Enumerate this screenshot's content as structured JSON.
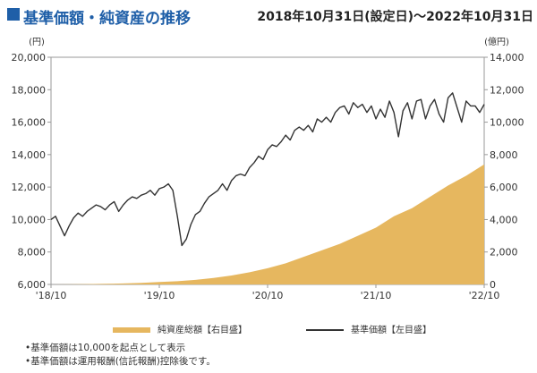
{
  "header": {
    "title": "基準価額・純資産の推移",
    "period": "2018年10月31日(設定日)～2022年10月31日"
  },
  "legend": {
    "area_label": "純資産総額【右目盛】",
    "line_label": "基準価額【左目盛】"
  },
  "notes": [
    "•基準価額は10,000を起点として表示",
    "•基準価額は運用報酬(信託報酬)控除後です。"
  ],
  "colors": {
    "title": "#1f5fa8",
    "area": "#e6b75f",
    "line": "#333333",
    "axis": "#999999"
  },
  "chart_data": {
    "type": "line",
    "title": "基準価額・純資産の推移",
    "left_unit": "(円)",
    "right_unit": "(億円)",
    "ylim_left": [
      6000,
      20000
    ],
    "ylim_right": [
      0,
      14000
    ],
    "yticks_left": [
      "6,000",
      "8,000",
      "10,000",
      "12,000",
      "14,000",
      "16,000",
      "18,000",
      "20,000"
    ],
    "yticks_right": [
      "0",
      "2,000",
      "4,000",
      "6,000",
      "8,000",
      "10,000",
      "12,000",
      "14,000"
    ],
    "xticks": [
      "'18/10",
      "'19/10",
      "'20/10",
      "'21/10",
      "'22/10"
    ],
    "grid": false,
    "series": [
      {
        "name": "純資産総額【右目盛】",
        "type": "area",
        "axis": "right",
        "x": [
          0,
          2,
          4,
          6,
          8,
          10,
          12,
          14,
          16,
          18,
          20,
          22,
          24,
          26,
          28,
          30,
          32,
          34,
          36,
          38,
          40,
          42,
          44,
          46,
          48
        ],
        "y": [
          0,
          10,
          20,
          40,
          60,
          100,
          150,
          200,
          280,
          400,
          550,
          750,
          1000,
          1300,
          1700,
          2100,
          2500,
          3000,
          3500,
          4200,
          4700,
          5400,
          6100,
          6700,
          7400
        ]
      },
      {
        "name": "基準価額【左目盛】",
        "type": "line",
        "axis": "left",
        "x": [
          0,
          0.5,
          1,
          1.5,
          2,
          2.5,
          3,
          3.5,
          4,
          4.5,
          5,
          5.5,
          6,
          6.5,
          7,
          7.5,
          8,
          8.5,
          9,
          9.5,
          10,
          10.5,
          11,
          11.5,
          12,
          12.5,
          13,
          13.5,
          14,
          14.5,
          15,
          15.5,
          16,
          16.5,
          17,
          17.5,
          18,
          18.5,
          19,
          19.5,
          20,
          20.5,
          21,
          21.5,
          22,
          22.5,
          23,
          23.5,
          24,
          24.5,
          25,
          25.5,
          26,
          26.5,
          27,
          27.5,
          28,
          28.5,
          29,
          29.5,
          30,
          30.5,
          31,
          31.5,
          32,
          32.5,
          33,
          33.5,
          34,
          34.5,
          35,
          35.5,
          36,
          36.5,
          37,
          37.5,
          38,
          38.5,
          39,
          39.5,
          40,
          40.5,
          41,
          41.5,
          42,
          42.5,
          43,
          43.5,
          44,
          44.5,
          45,
          45.5,
          46,
          46.5,
          47,
          47.5,
          48
        ],
        "y": [
          10000,
          10200,
          9600,
          9000,
          9600,
          10100,
          10400,
          10200,
          10500,
          10700,
          10900,
          10800,
          10600,
          10900,
          11100,
          10500,
          10900,
          11200,
          11400,
          11300,
          11500,
          11600,
          11800,
          11500,
          11900,
          12000,
          12200,
          11800,
          10200,
          8400,
          8800,
          9700,
          10300,
          10500,
          11000,
          11400,
          11600,
          11800,
          12200,
          11800,
          12400,
          12700,
          12800,
          12700,
          13200,
          13500,
          13900,
          13700,
          14300,
          14600,
          14500,
          14800,
          15200,
          14900,
          15500,
          15700,
          15500,
          15800,
          15400,
          16200,
          16000,
          16300,
          16000,
          16600,
          16900,
          17000,
          16500,
          17200,
          16900,
          17100,
          16600,
          17000,
          16200,
          16800,
          16300,
          17300,
          16600,
          15100,
          16700,
          17200,
          16200,
          17300,
          17400,
          16200,
          17000,
          17400,
          16500,
          16000,
          17500,
          17800,
          16900,
          16000,
          17300,
          17000,
          17000,
          16600,
          17100
        ]
      }
    ]
  }
}
